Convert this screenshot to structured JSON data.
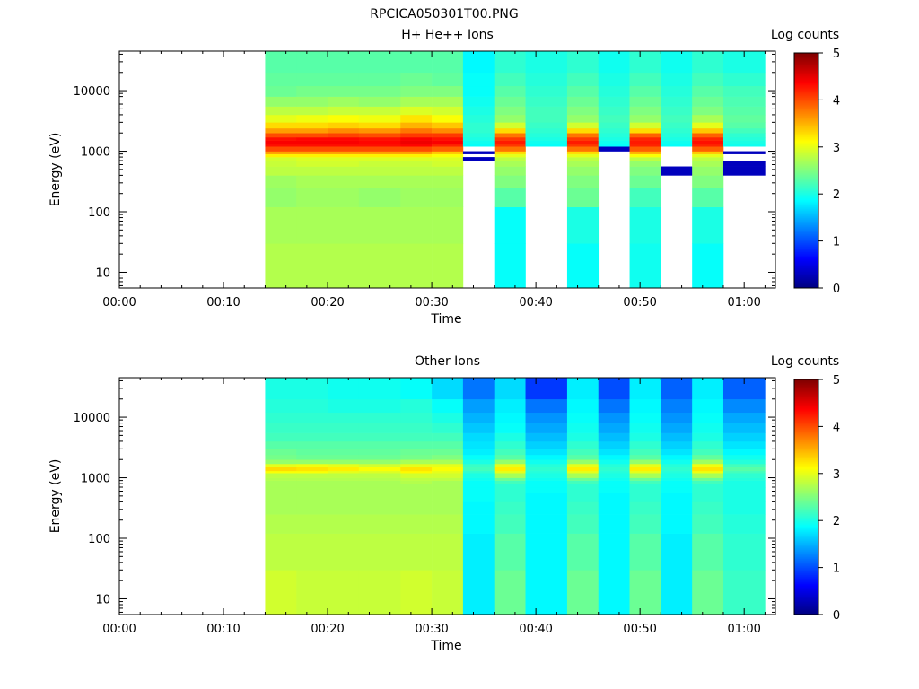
{
  "figure_title": "RPCICA050301T00.PNG",
  "chart_data": [
    {
      "type": "heatmap",
      "title": "H+ He++ Ions",
      "xlabel": "Time",
      "ylabel": "Energy (eV)",
      "y_scale": "log",
      "ylim": [
        5.5,
        45000
      ],
      "xlim_minutes": [
        0,
        63
      ],
      "x_tick_labels": [
        "00:00",
        "00:10",
        "00:20",
        "00:30",
        "00:40",
        "00:50",
        "01:00"
      ],
      "y_tick_labels": [
        "10",
        "100",
        "1000",
        "10000"
      ],
      "colorbar": {
        "label": "Log counts",
        "range": [
          0,
          5
        ],
        "tick_labels": [
          "0",
          "1",
          "2",
          "3",
          "4",
          "5"
        ],
        "colormap": "jet"
      },
      "energy_bands": [
        5.5,
        30,
        120,
        250,
        400,
        560,
        700,
        800,
        900,
        1000,
        1200,
        1300,
        1500,
        1700,
        2000,
        2400,
        3000,
        4000,
        5500,
        8000,
        12000,
        20000,
        45000
      ],
      "time_columns": [
        {
          "start": "00:14",
          "end": "00:17",
          "log_counts": [
            2.75,
            2.7,
            2.6,
            2.65,
            2.8,
            2.85,
            2.9,
            3.2,
            3.6,
            4.0,
            4.3,
            4.4,
            4.3,
            4.0,
            3.6,
            3.3,
            3.0,
            2.8,
            2.6,
            2.4,
            2.35,
            2.3
          ]
        },
        {
          "start": "00:17",
          "end": "00:20",
          "log_counts": [
            2.75,
            2.7,
            2.65,
            2.7,
            2.8,
            2.9,
            2.95,
            3.2,
            3.6,
            4.0,
            4.3,
            4.4,
            4.35,
            4.0,
            3.6,
            3.3,
            3.05,
            2.8,
            2.6,
            2.45,
            2.35,
            2.3
          ]
        },
        {
          "start": "00:20",
          "end": "00:23",
          "log_counts": [
            2.75,
            2.7,
            2.65,
            2.7,
            2.8,
            2.9,
            2.95,
            3.2,
            3.6,
            4.0,
            4.3,
            4.4,
            4.35,
            4.05,
            3.7,
            3.35,
            3.1,
            2.85,
            2.65,
            2.45,
            2.35,
            2.3
          ]
        },
        {
          "start": "00:23",
          "end": "00:27",
          "log_counts": [
            2.75,
            2.7,
            2.6,
            2.7,
            2.8,
            2.85,
            2.95,
            3.2,
            3.6,
            4.0,
            4.3,
            4.35,
            4.3,
            4.0,
            3.65,
            3.3,
            3.05,
            2.85,
            2.6,
            2.45,
            2.35,
            2.3
          ]
        },
        {
          "start": "00:27",
          "end": "00:30",
          "log_counts": [
            2.75,
            2.7,
            2.65,
            2.7,
            2.8,
            2.85,
            2.95,
            3.2,
            3.6,
            4.0,
            4.35,
            4.45,
            4.4,
            4.1,
            3.8,
            3.5,
            3.25,
            2.95,
            2.7,
            2.5,
            2.4,
            2.3
          ]
        },
        {
          "start": "00:30",
          "end": "00:33",
          "log_counts": [
            2.75,
            2.7,
            2.65,
            2.7,
            2.8,
            2.9,
            2.95,
            3.1,
            3.4,
            3.9,
            4.2,
            4.4,
            4.3,
            4.1,
            3.7,
            3.4,
            3.1,
            2.9,
            2.7,
            2.5,
            2.35,
            2.3
          ]
        },
        {
          "start": "00:33",
          "end": "00:36",
          "log_counts": [
            null,
            null,
            null,
            null,
            null,
            null,
            0.3,
            null,
            0.3,
            null,
            1.9,
            1.95,
            2.0,
            2.05,
            2.1,
            2.1,
            2.05,
            2.0,
            1.95,
            1.9,
            1.9,
            1.85
          ]
        },
        {
          "start": "00:36",
          "end": "00:39",
          "log_counts": [
            1.9,
            1.9,
            2.3,
            2.5,
            2.6,
            2.7,
            2.8,
            3.0,
            3.3,
            3.8,
            4.1,
            4.25,
            4.1,
            3.8,
            3.3,
            2.9,
            2.6,
            2.5,
            2.4,
            2.3,
            2.2,
            2.1
          ]
        },
        {
          "start": "00:39",
          "end": "00:43",
          "log_counts": [
            null,
            null,
            null,
            null,
            null,
            null,
            null,
            null,
            null,
            null,
            1.9,
            1.95,
            2.0,
            2.05,
            2.1,
            2.15,
            2.2,
            2.2,
            2.15,
            2.1,
            2.05,
            2.0
          ]
        },
        {
          "start": "00:43",
          "end": "00:46",
          "log_counts": [
            1.9,
            2.0,
            2.4,
            2.5,
            2.6,
            2.7,
            2.8,
            3.0,
            3.3,
            3.8,
            4.1,
            4.25,
            4.1,
            3.8,
            3.3,
            2.9,
            2.6,
            2.5,
            2.4,
            2.3,
            2.2,
            2.1
          ]
        },
        {
          "start": "00:46",
          "end": "00:49",
          "log_counts": [
            null,
            null,
            null,
            null,
            null,
            null,
            null,
            null,
            null,
            0.3,
            1.9,
            1.95,
            2.0,
            2.05,
            2.1,
            2.15,
            2.2,
            2.15,
            2.1,
            2.05,
            2.0,
            1.95
          ]
        },
        {
          "start": "00:49",
          "end": "00:52",
          "log_counts": [
            1.95,
            2.0,
            2.2,
            2.4,
            2.5,
            2.6,
            2.8,
            3.1,
            3.5,
            3.9,
            4.2,
            4.25,
            4.2,
            3.9,
            3.3,
            2.9,
            2.6,
            2.5,
            2.4,
            2.3,
            2.2,
            2.1
          ]
        },
        {
          "start": "00:52",
          "end": "00:55",
          "log_counts": [
            null,
            null,
            null,
            null,
            0.3,
            null,
            null,
            null,
            null,
            null,
            1.9,
            1.95,
            2.0,
            2.05,
            2.1,
            2.15,
            2.2,
            2.15,
            2.1,
            2.05,
            2.0,
            1.95
          ]
        },
        {
          "start": "00:55",
          "end": "00:58",
          "log_counts": [
            1.9,
            2.0,
            2.3,
            2.5,
            2.6,
            2.7,
            2.8,
            3.0,
            3.4,
            3.9,
            4.2,
            4.3,
            4.2,
            3.9,
            3.4,
            3.0,
            2.7,
            2.5,
            2.4,
            2.3,
            2.2,
            2.1
          ]
        },
        {
          "start": "00:58",
          "end": "01:02",
          "log_counts": [
            null,
            null,
            null,
            null,
            0.3,
            0.3,
            null,
            null,
            0.3,
            null,
            1.95,
            2.0,
            2.05,
            2.1,
            2.2,
            2.3,
            2.35,
            2.3,
            2.25,
            2.2,
            2.1,
            2.0
          ]
        }
      ]
    },
    {
      "type": "heatmap",
      "title": "Other Ions",
      "xlabel": "Time",
      "ylabel": "Energy (eV)",
      "y_scale": "log",
      "ylim": [
        5.5,
        45000
      ],
      "xlim_minutes": [
        0,
        63
      ],
      "x_tick_labels": [
        "00:00",
        "00:10",
        "00:20",
        "00:30",
        "00:40",
        "00:50",
        "01:00"
      ],
      "y_tick_labels": [
        "10",
        "100",
        "1000",
        "10000"
      ],
      "colorbar": {
        "label": "Log counts",
        "range": [
          0,
          5
        ],
        "tick_labels": [
          "0",
          "1",
          "2",
          "3",
          "4",
          "5"
        ],
        "colormap": "jet"
      },
      "energy_bands": [
        5.5,
        30,
        120,
        250,
        400,
        560,
        700,
        800,
        900,
        1000,
        1200,
        1300,
        1500,
        1700,
        2000,
        2400,
        3000,
        4000,
        5500,
        8000,
        12000,
        20000,
        45000
      ],
      "time_columns": [
        {
          "start": "00:14",
          "end": "00:17",
          "log_counts": [
            2.9,
            2.8,
            2.75,
            2.7,
            2.7,
            2.7,
            2.7,
            2.7,
            2.75,
            2.8,
            3.1,
            3.3,
            3.0,
            2.6,
            2.45,
            2.4,
            2.3,
            2.2,
            2.15,
            2.1,
            2.05,
            2.0
          ]
        },
        {
          "start": "00:17",
          "end": "00:20",
          "log_counts": [
            2.85,
            2.8,
            2.75,
            2.7,
            2.7,
            2.7,
            2.7,
            2.7,
            2.75,
            2.8,
            3.1,
            3.25,
            3.05,
            2.6,
            2.4,
            2.35,
            2.3,
            2.2,
            2.15,
            2.1,
            2.05,
            2.0
          ]
        },
        {
          "start": "00:20",
          "end": "00:23",
          "log_counts": [
            2.85,
            2.8,
            2.75,
            2.7,
            2.7,
            2.7,
            2.7,
            2.7,
            2.75,
            2.8,
            3.0,
            3.2,
            3.0,
            2.6,
            2.4,
            2.35,
            2.3,
            2.2,
            2.15,
            2.1,
            2.0,
            1.95
          ]
        },
        {
          "start": "00:23",
          "end": "00:27",
          "log_counts": [
            2.85,
            2.8,
            2.75,
            2.7,
            2.7,
            2.7,
            2.7,
            2.7,
            2.75,
            2.8,
            2.95,
            3.1,
            2.9,
            2.6,
            2.4,
            2.35,
            2.3,
            2.2,
            2.15,
            2.1,
            2.0,
            1.95
          ]
        },
        {
          "start": "00:27",
          "end": "00:30",
          "log_counts": [
            2.9,
            2.8,
            2.75,
            2.7,
            2.7,
            2.7,
            2.7,
            2.75,
            2.8,
            2.9,
            3.15,
            3.25,
            3.0,
            2.7,
            2.45,
            2.4,
            2.3,
            2.2,
            2.15,
            2.1,
            2.05,
            1.9
          ]
        },
        {
          "start": "00:30",
          "end": "00:33",
          "log_counts": [
            2.85,
            2.8,
            2.75,
            2.7,
            2.7,
            2.7,
            2.7,
            2.7,
            2.8,
            2.9,
            3.0,
            3.1,
            3.0,
            2.7,
            2.5,
            2.4,
            2.3,
            2.2,
            2.1,
            2.0,
            1.9,
            1.7
          ]
        },
        {
          "start": "00:33",
          "end": "00:36",
          "log_counts": [
            1.8,
            1.8,
            1.85,
            1.85,
            1.9,
            1.9,
            1.9,
            1.9,
            1.95,
            2.0,
            2.1,
            2.2,
            2.15,
            2.0,
            1.9,
            1.8,
            1.75,
            1.7,
            1.6,
            1.5,
            1.4,
            1.2
          ]
        },
        {
          "start": "00:36",
          "end": "00:39",
          "log_counts": [
            2.4,
            2.3,
            2.2,
            2.15,
            2.1,
            2.1,
            2.1,
            2.2,
            2.4,
            2.7,
            3.0,
            3.2,
            3.0,
            2.6,
            2.3,
            2.2,
            2.1,
            2.0,
            1.9,
            1.85,
            1.8,
            1.7
          ]
        },
        {
          "start": "00:39",
          "end": "00:43",
          "log_counts": [
            1.85,
            1.85,
            1.85,
            1.85,
            1.85,
            1.9,
            1.9,
            1.9,
            1.95,
            2.0,
            2.05,
            2.1,
            2.05,
            1.95,
            1.85,
            1.75,
            1.65,
            1.55,
            1.45,
            1.35,
            1.2,
            0.9
          ]
        },
        {
          "start": "00:43",
          "end": "00:46",
          "log_counts": [
            2.4,
            2.3,
            2.2,
            2.15,
            2.1,
            2.1,
            2.1,
            2.2,
            2.4,
            2.7,
            3.0,
            3.2,
            3.0,
            2.6,
            2.3,
            2.2,
            2.1,
            2.0,
            1.95,
            1.9,
            1.85,
            1.8
          ]
        },
        {
          "start": "00:46",
          "end": "00:49",
          "log_counts": [
            1.85,
            1.85,
            1.85,
            1.85,
            1.85,
            1.9,
            1.9,
            1.9,
            1.95,
            2.0,
            2.05,
            2.1,
            2.05,
            1.95,
            1.85,
            1.75,
            1.65,
            1.55,
            1.45,
            1.35,
            1.2,
            1.0
          ]
        },
        {
          "start": "00:49",
          "end": "00:52",
          "log_counts": [
            2.4,
            2.3,
            2.2,
            2.15,
            2.1,
            2.1,
            2.1,
            2.2,
            2.4,
            2.7,
            3.0,
            3.2,
            3.0,
            2.6,
            2.3,
            2.2,
            2.1,
            2.0,
            1.95,
            1.9,
            1.85,
            1.8
          ]
        },
        {
          "start": "00:52",
          "end": "00:55",
          "log_counts": [
            1.8,
            1.8,
            1.85,
            1.85,
            1.85,
            1.9,
            1.9,
            1.9,
            1.95,
            2.0,
            2.05,
            2.1,
            2.05,
            1.95,
            1.85,
            1.75,
            1.65,
            1.55,
            1.45,
            1.35,
            1.25,
            1.1
          ]
        },
        {
          "start": "00:55",
          "end": "00:58",
          "log_counts": [
            2.4,
            2.3,
            2.2,
            2.15,
            2.1,
            2.1,
            2.1,
            2.2,
            2.4,
            2.7,
            3.05,
            3.25,
            3.05,
            2.65,
            2.35,
            2.2,
            2.1,
            2.0,
            1.95,
            1.9,
            1.85,
            1.8
          ]
        },
        {
          "start": "00:58",
          "end": "01:02",
          "log_counts": [
            2.15,
            2.1,
            2.05,
            2.0,
            2.0,
            2.0,
            2.0,
            2.0,
            2.05,
            2.1,
            2.2,
            2.3,
            2.2,
            2.05,
            1.95,
            1.85,
            1.75,
            1.65,
            1.55,
            1.45,
            1.3,
            1.1
          ]
        }
      ]
    }
  ]
}
